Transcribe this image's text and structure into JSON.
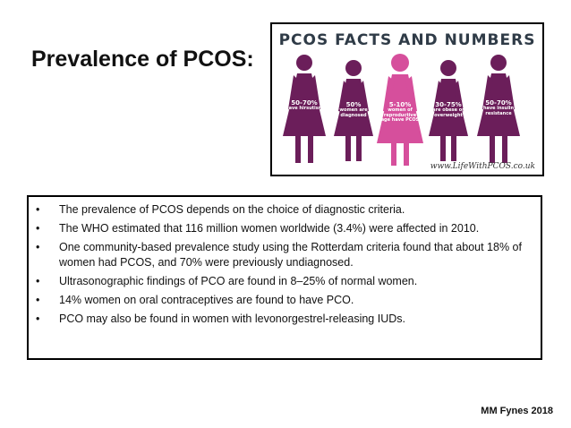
{
  "slide": {
    "title": "Prevalence of PCOS:",
    "credit": "MM Fynes 2018"
  },
  "infographic": {
    "title": "PCOS FACTS AND NUMBERS",
    "website": "www.LifeWithPCOS.co.uk",
    "colors": {
      "primary": "#6b1e5a",
      "highlight": "#d64f9c"
    },
    "figures": [
      {
        "pct": "50-70%",
        "desc": "have hirsutism",
        "icon": "woman-icon"
      },
      {
        "pct": "50%",
        "desc": "women are diagnosed",
        "icon": "woman-icon"
      },
      {
        "pct": "5-10%",
        "desc": "women of reproductive age have PCOS",
        "icon": "woman-icon"
      },
      {
        "pct": "30-75%",
        "desc": "are obese or overweight",
        "icon": "woman-icon"
      },
      {
        "pct": "50-70%",
        "desc": "have insulin resistance",
        "icon": "woman-icon"
      }
    ]
  },
  "bullets": [
    "The prevalence of PCOS depends on the choice of diagnostic criteria.",
    "The WHO estimated that 116 million women worldwide (3.4%) were affected in 2010.",
    "One community-based prevalence study using the Rotterdam criteria found that about 18% of women had PCOS, and 70% were previously undiagnosed.",
    "Ultrasonographic findings of PCO are found in 8–25% of normal women.",
    "14% women on oral contraceptives are found to have PCO.",
    "PCO may also be found in women with levonorgestrel-releasing IUDs."
  ]
}
